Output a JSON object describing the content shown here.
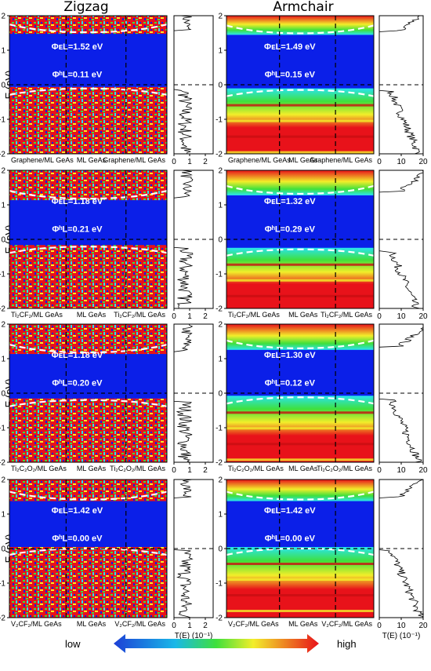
{
  "columns": [
    "Zigzag",
    "Armchair"
  ],
  "energy_axis": {
    "label": "E (eV)",
    "range": [
      -2,
      2
    ],
    "ticks": [
      "2",
      "1",
      "0",
      "-1",
      "-2"
    ]
  },
  "transmission_axis_label": "T(E) (10⁻¹)",
  "zigzag_T_ticks": [
    "0",
    "1",
    "2"
  ],
  "armchair_T_ticks": [
    "0",
    "10",
    "20"
  ],
  "rows": [
    {
      "x_labels": [
        "Graphene/ML GeAs",
        "ML GeAs",
        "Graphene/ML GeAs"
      ],
      "zigzag": {
        "phi_e": "ΦᴇL=1.52 eV",
        "phi_h": "ΦʰL=0.11 eV",
        "cb_edge": 1.52,
        "vb_edge": -0.11
      },
      "armchair": {
        "phi_e": "ΦᴇL=1.49 eV",
        "phi_h": "ΦʰL=0.15 eV",
        "cb_edge": 1.49,
        "vb_edge": -0.15
      }
    },
    {
      "x_labels": [
        "Ti₂CF₂/ML GeAs",
        "ML GeAs",
        "Ti₂CF₂/ML GeAs"
      ],
      "zigzag": {
        "phi_e": "ΦᴇL=1.18 eV",
        "phi_h": "ΦʰL=0.21 eV",
        "cb_edge": 1.18,
        "vb_edge": -0.21
      },
      "armchair": {
        "phi_e": "ΦᴇL=1.32 eV",
        "phi_h": "ΦʰL=0.29 eV",
        "cb_edge": 1.32,
        "vb_edge": -0.29
      }
    },
    {
      "x_labels": [
        "Ti₂C₂O₂/ML GeAs",
        "ML GeAs",
        "Ti₂C₂O₂/ML GeAs"
      ],
      "zigzag": {
        "phi_e": "ΦᴇL=1.18 eV",
        "phi_h": "ΦʰL=0.20 eV",
        "cb_edge": 1.18,
        "vb_edge": -0.2
      },
      "armchair": {
        "phi_e": "ΦᴇL=1.30 eV",
        "phi_h": "ΦʰL=0.12 eV",
        "cb_edge": 1.3,
        "vb_edge": -0.12
      }
    },
    {
      "x_labels": [
        "V₂CF₂/ML GeAs",
        "ML GeAs",
        "V₂CF₂/ML GeAs"
      ],
      "zigzag": {
        "phi_e": "ΦᴇL=1.42 eV",
        "phi_h": "ΦʰL=0.00 eV",
        "cb_edge": 1.42,
        "vb_edge": 0.0
      },
      "armchair": {
        "phi_e": "ΦᴇL=1.42 eV",
        "phi_h": "ΦʰL=0.00 eV",
        "cb_edge": 1.42,
        "vb_edge": 0.0
      }
    }
  ],
  "legend": {
    "low": "low",
    "high": "high"
  },
  "colors": {
    "low": "#0b1fe8",
    "high": "#e8121a",
    "cyan": "#29e4f0",
    "green": "#3fe03c",
    "yellow": "#f2ee2a"
  },
  "chart_data": {
    "type": "heatmap",
    "description_type": "projected local density of states with transmission spectra",
    "y_range": [
      -2,
      2
    ],
    "series": [
      {
        "name": "Graphene/ML GeAs zigzag",
        "phi_e": 1.52,
        "phi_h": 0.11
      },
      {
        "name": "Graphene/ML GeAs armchair",
        "phi_e": 1.49,
        "phi_h": 0.15
      },
      {
        "name": "Ti2CF2/ML GeAs zigzag",
        "phi_e": 1.18,
        "phi_h": 0.21
      },
      {
        "name": "Ti2CF2/ML GeAs armchair",
        "phi_e": 1.32,
        "phi_h": 0.29
      },
      {
        "name": "Ti2C2O2/ML GeAs zigzag",
        "phi_e": 1.18,
        "phi_h": 0.2
      },
      {
        "name": "Ti2C2O2/ML GeAs armchair",
        "phi_e": 1.3,
        "phi_h": 0.12
      },
      {
        "name": "V2CF2/ML GeAs zigzag",
        "phi_e": 1.42,
        "phi_h": 0.0
      },
      {
        "name": "V2CF2/ML GeAs armchair",
        "phi_e": 1.42,
        "phi_h": 0.0
      }
    ]
  }
}
